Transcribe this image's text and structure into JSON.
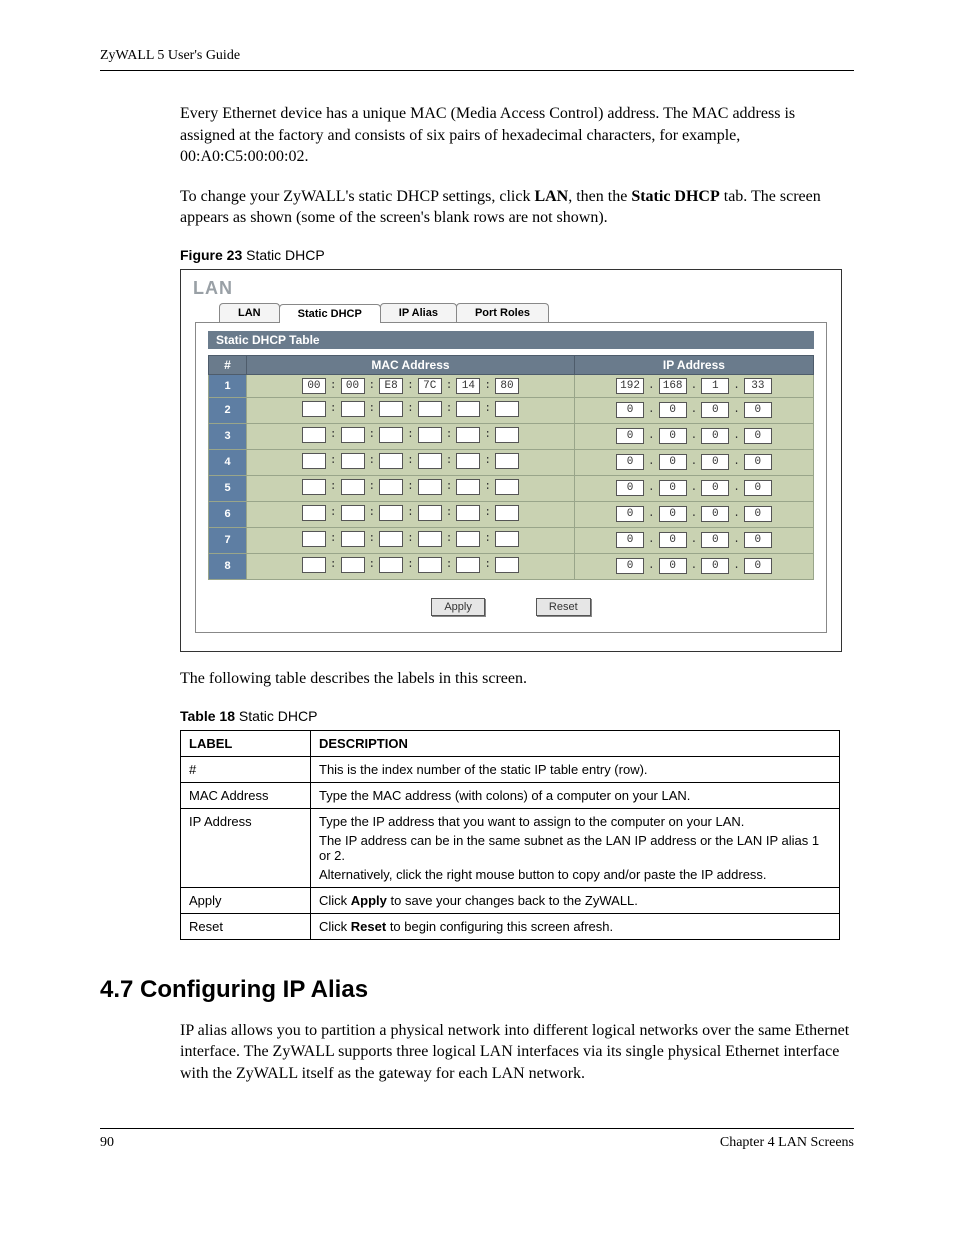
{
  "header": {
    "running_head": "ZyWALL 5 User's Guide"
  },
  "para1_a": "Every Ethernet device has a unique MAC (Media Access Control) address. The MAC address is assigned at the factory and consists of six pairs of hexadecimal characters, for example, 00:A0:C5:00:00:02.",
  "para2_a": "To change your ZyWALL's static DHCP settings, click ",
  "para2_b": "LAN",
  "para2_c": ", then the ",
  "para2_d": "Static DHCP",
  "para2_e": " tab. The screen appears as shown (some of the screen's blank rows are not shown).",
  "fig_caption_num": "Figure 23",
  "fig_caption_txt": "   Static DHCP",
  "shot": {
    "title": "LAN",
    "tabs": {
      "lan": "LAN",
      "static_dhcp": "Static DHCP",
      "ip_alias": "IP Alias",
      "port_roles": "Port Roles"
    },
    "panel_title": "Static DHCP Table",
    "cols": {
      "num": "#",
      "mac": "MAC Address",
      "ip": "IP Address"
    },
    "rows": [
      {
        "idx": "1",
        "mac": [
          "00",
          "00",
          "E8",
          "7C",
          "14",
          "80"
        ],
        "ip": [
          "192",
          "168",
          "1",
          "33"
        ]
      },
      {
        "idx": "2",
        "mac": [
          "",
          "",
          "",
          "",
          "",
          ""
        ],
        "ip": [
          "0",
          "0",
          "0",
          "0"
        ]
      },
      {
        "idx": "3",
        "mac": [
          "",
          "",
          "",
          "",
          "",
          ""
        ],
        "ip": [
          "0",
          "0",
          "0",
          "0"
        ]
      },
      {
        "idx": "4",
        "mac": [
          "",
          "",
          "",
          "",
          "",
          ""
        ],
        "ip": [
          "0",
          "0",
          "0",
          "0"
        ]
      },
      {
        "idx": "5",
        "mac": [
          "",
          "",
          "",
          "",
          "",
          ""
        ],
        "ip": [
          "0",
          "0",
          "0",
          "0"
        ]
      },
      {
        "idx": "6",
        "mac": [
          "",
          "",
          "",
          "",
          "",
          ""
        ],
        "ip": [
          "0",
          "0",
          "0",
          "0"
        ]
      },
      {
        "idx": "7",
        "mac": [
          "",
          "",
          "",
          "",
          "",
          ""
        ],
        "ip": [
          "0",
          "0",
          "0",
          "0"
        ]
      },
      {
        "idx": "8",
        "mac": [
          "",
          "",
          "",
          "",
          "",
          ""
        ],
        "ip": [
          "0",
          "0",
          "0",
          "0"
        ]
      }
    ],
    "apply": "Apply",
    "reset": "Reset",
    "colors": {
      "header_bg": "#6a7b8c",
      "row_bg": "#c9d2b2",
      "idx_bg": "#5e7ea3"
    }
  },
  "after_fig": "The following table describes the labels in this screen.",
  "tbl_caption_num": "Table 18",
  "tbl_caption_txt": "   Static DHCP",
  "table18": {
    "head_label": "LABEL",
    "head_desc": "DESCRIPTION",
    "rows": [
      {
        "label": "#",
        "desc": [
          "This is the index number of the static IP table entry (row)."
        ]
      },
      {
        "label": "MAC Address",
        "desc": [
          "Type the MAC address (with colons) of a computer on your LAN."
        ]
      },
      {
        "label": "IP Address",
        "desc": [
          "Type the IP address that you want to assign to the computer on your LAN.",
          "The IP address can be in the same subnet as the LAN IP address or the LAN IP alias 1 or 2.",
          "Alternatively, click the right mouse button to copy and/or paste the IP address."
        ]
      },
      {
        "label": "Apply",
        "desc_html": {
          "pre": "Click ",
          "b": "Apply",
          "post": " to save your changes back to the ZyWALL."
        }
      },
      {
        "label": "Reset",
        "desc_html": {
          "pre": "Click ",
          "b": "Reset",
          "post": " to begin configuring this screen afresh."
        }
      }
    ]
  },
  "section": {
    "num_title": "4.7  Configuring IP Alias",
    "para": "IP alias allows you to partition a physical network into different logical networks over the same Ethernet interface. The ZyWALL supports three logical LAN interfaces via its single physical Ethernet interface with the ZyWALL itself as the gateway for each LAN network."
  },
  "footer": {
    "page": "90",
    "chapter": "Chapter 4 LAN Screens"
  }
}
